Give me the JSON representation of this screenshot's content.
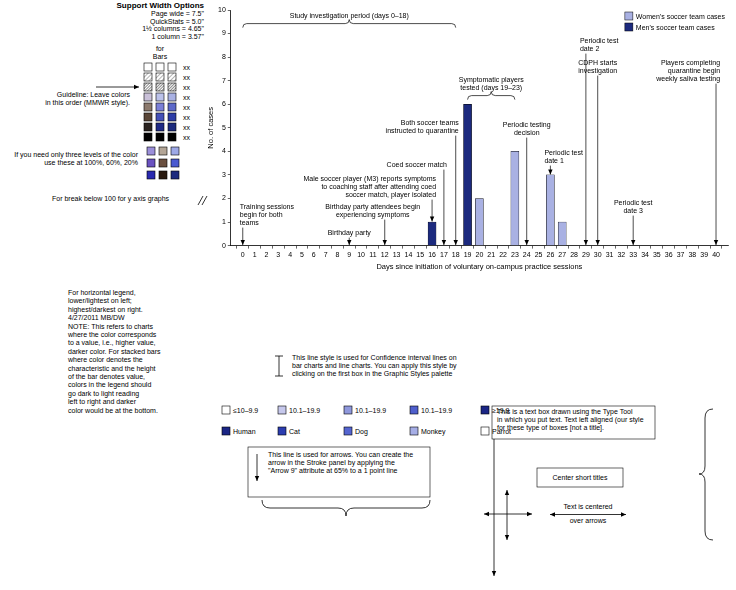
{
  "chart_data": {
    "type": "bar",
    "x_label": "Days since initiation of voluntary on-campus practice sessions",
    "y_label": "No. of cases",
    "x": [
      16,
      19,
      20,
      23,
      26,
      27
    ],
    "series": [
      {
        "name": "Women's soccer team cases",
        "color": "#a9b1e3",
        "values": [
          null,
          null,
          2,
          4,
          3,
          1
        ]
      },
      {
        "name": "Men's soccer team cases",
        "color": "#1c2a7e",
        "values": [
          1,
          6,
          null,
          null,
          null,
          null
        ]
      }
    ],
    "xlim": [
      -0.5,
      40.5
    ],
    "xticks": [
      0,
      1,
      2,
      3,
      4,
      5,
      6,
      7,
      8,
      9,
      10,
      11,
      12,
      13,
      14,
      15,
      16,
      17,
      18,
      19,
      20,
      21,
      22,
      23,
      24,
      25,
      26,
      27,
      28,
      29,
      30,
      31,
      32,
      33,
      34,
      35,
      36,
      37,
      38,
      39,
      40
    ],
    "ylim": [
      0,
      10
    ],
    "yticks": [
      0,
      1,
      2,
      3,
      4,
      5,
      6,
      7,
      8,
      9,
      10
    ],
    "grid": false,
    "legend": "upper right",
    "annotations": [
      {
        "x": 0,
        "text": [
          "Training sessions",
          "begin for both",
          "teams"
        ]
      },
      {
        "x": 9,
        "text": [
          "Birthday party"
        ]
      },
      {
        "x": 12,
        "text": [
          "Birthday party attendees begin",
          "experiencing symptoms"
        ]
      },
      {
        "x": 16,
        "text": [
          "Male soccer player (M3) reports symptoms",
          "to coaching staff after attending coed",
          "soccer match, player isolated"
        ]
      },
      {
        "x": 17,
        "text": [
          "Coed soccer match"
        ]
      },
      {
        "x": 18,
        "text": [
          "Both soccer teams",
          "instructed to quarantine"
        ]
      },
      {
        "x": [
          19,
          23
        ],
        "text": [
          "Symptomatic players",
          "tested (days 19–23)"
        ]
      },
      {
        "x": 24,
        "text": [
          "Periodic testing",
          "decision"
        ]
      },
      {
        "x": 26,
        "text": [
          "Periodic test",
          "date 1"
        ]
      },
      {
        "x": 29,
        "text": [
          "Periodic test",
          "date 2"
        ]
      },
      {
        "x": 30,
        "text": [
          "CDPH starts",
          "investigation"
        ]
      },
      {
        "x": 33,
        "text": [
          "Periodic test",
          "date 3"
        ]
      },
      {
        "x": 40,
        "text": [
          "Players completing",
          "quarantine begin",
          "weekly saliva testing"
        ]
      },
      {
        "x": [
          0,
          18
        ],
        "text": [
          "Study investigation period (days 0–18)"
        ]
      }
    ]
  },
  "page": {
    "width_options": {
      "title": "Support Width Options",
      "lines": [
        "Page wide = 7.5\"",
        "QuickStats = 5.0\"",
        "1½ columns = 4.65\"",
        "1 column = 3.57\""
      ]
    },
    "bars_heading": [
      "for",
      "Bars"
    ],
    "swatch_labels": [
      "xx",
      "xx",
      "xx",
      "xx",
      "xx",
      "xx",
      "xx",
      "xx"
    ],
    "guideline": [
      "Guideline: Leave colors",
      "in this order (MMWR style)."
    ],
    "three_levels": [
      "If you need only three levels of the color",
      "use these at 100%, 60%, 20%"
    ],
    "break_note": "For break below 100 for y axis graphs",
    "legend_note": [
      "For horizontal legend,",
      "lower/lightest on left;",
      "highest/darkest on right.",
      "4/27/2011 MB/DW",
      "NOTE: This refers to charts",
      "where the color corresponds",
      "to a value, i.e., higher value,",
      "darker color. For stacked bars",
      "where color denotes the",
      "characteristic and the height",
      "of the bar denotes value,",
      "colors in the legend should",
      "go dark to light reading",
      "left to right and darker",
      "color would be at the bottom."
    ],
    "legend_examples": [
      [
        "≤10–9.9",
        "10.1–19.9",
        "10.1–19.9",
        "10.1–19.9",
        "≥19.9"
      ],
      [
        "Human",
        "Cat",
        "Dog",
        "Monkey",
        "Parrot"
      ]
    ],
    "ci_note": [
      "This line style is used for Confidence interval lines on",
      "bar charts and line charts. You can apply this style by",
      "clicking on the first box in the Graphic Styles palette"
    ],
    "arrow_note": [
      "This line is used for arrows. You can create the",
      "arrow in the Stroke panel by applying the",
      "\"Arrow 9\" attribute at 65% to a 1 point line"
    ],
    "text_box_note": [
      "This is a text box drawn using the Type Tool",
      "in which you put text. Text left aligned (our style",
      "for these type of boxes [not a title]."
    ],
    "center_title": "Center short titles",
    "centered_text": [
      "Text is centered",
      "over arrows"
    ]
  }
}
